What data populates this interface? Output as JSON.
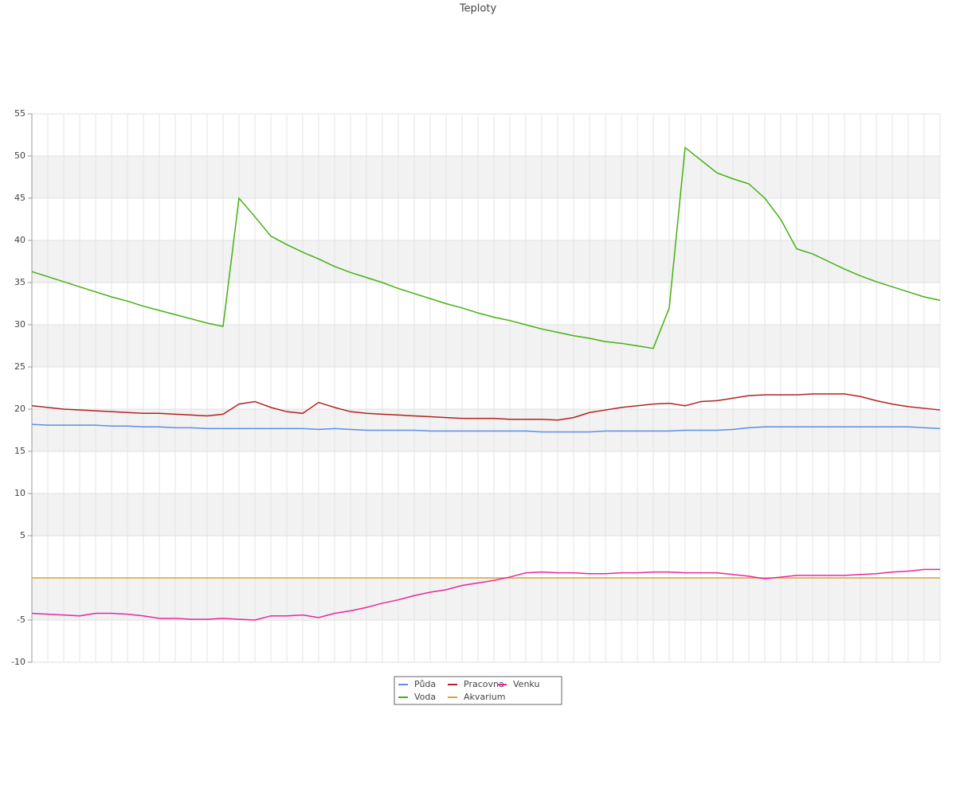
{
  "chart_data": {
    "type": "line",
    "title": "Teploty",
    "categories": [
      null,
      null,
      null,
      null,
      null,
      null,
      null,
      null,
      null,
      null,
      null,
      null,
      null,
      null,
      null,
      null,
      null,
      null,
      null,
      null,
      null,
      null,
      null,
      null,
      null,
      null,
      null,
      null,
      null,
      null,
      null,
      null,
      null,
      null,
      null,
      null,
      null,
      null,
      null,
      null,
      null,
      null,
      null,
      null,
      null,
      null,
      null,
      null,
      null,
      null,
      null,
      null,
      null,
      null,
      null,
      null,
      null,
      null
    ],
    "ylim": [
      -10,
      55
    ],
    "yticks": [
      -10,
      -5,
      5,
      10,
      15,
      20,
      25,
      30,
      35,
      40,
      45,
      50,
      55
    ],
    "grid": true,
    "bands": true,
    "legend": "bottom",
    "series": [
      {
        "name": "Půda",
        "color": "#5b8ee6",
        "values": [
          18.2,
          18.1,
          18.1,
          18.1,
          18.1,
          18.0,
          18.0,
          17.9,
          17.9,
          17.8,
          17.8,
          17.7,
          17.7,
          17.7,
          17.7,
          17.7,
          17.7,
          17.7,
          17.6,
          17.7,
          17.6,
          17.5,
          17.5,
          17.5,
          17.5,
          17.4,
          17.4,
          17.4,
          17.4,
          17.4,
          17.4,
          17.4,
          17.3,
          17.3,
          17.3,
          17.3,
          17.4,
          17.4,
          17.4,
          17.4,
          17.4,
          17.5,
          17.5,
          17.5,
          17.6,
          17.8,
          17.9,
          17.9,
          17.9,
          17.9,
          17.9,
          17.9,
          17.9,
          17.9,
          17.9,
          17.9,
          17.8,
          17.7
        ]
      },
      {
        "name": "Voda",
        "color": "#44b012",
        "values": [
          36.3,
          35.7,
          35.1,
          34.5,
          33.9,
          33.3,
          32.8,
          32.2,
          31.7,
          31.2,
          30.7,
          30.2,
          29.8,
          45,
          42.8,
          40.5,
          39.5,
          38.6,
          37.8,
          36.9,
          36.2,
          35.6,
          35.0,
          34.3,
          33.7,
          33.1,
          32.5,
          32.0,
          31.4,
          30.9,
          30.5,
          30.0,
          29.5,
          29.1,
          28.7,
          28.4,
          28.0,
          27.8,
          27.5,
          27.2,
          32,
          51,
          49.5,
          48,
          47.3,
          46.7,
          45,
          42.5,
          39,
          38.4,
          37.5,
          36.6,
          35.8,
          35.1,
          34.5,
          33.9,
          33.3,
          32.9
        ]
      },
      {
        "name": "Pracovna",
        "color": "#b22222",
        "values": [
          20.4,
          20.2,
          20.0,
          19.9,
          19.8,
          19.7,
          19.6,
          19.5,
          19.5,
          19.4,
          19.3,
          19.2,
          19.4,
          20.6,
          20.9,
          20.2,
          19.7,
          19.5,
          20.8,
          20.2,
          19.7,
          19.5,
          19.4,
          19.3,
          19.2,
          19.1,
          19.0,
          18.9,
          18.9,
          18.9,
          18.8,
          18.8,
          18.8,
          18.7,
          19.0,
          19.6,
          19.9,
          20.2,
          20.4,
          20.6,
          20.7,
          20.4,
          20.9,
          21.0,
          21.3,
          21.6,
          21.7,
          21.7,
          21.7,
          21.8,
          21.8,
          21.8,
          21.5,
          21.0,
          20.6,
          20.3,
          20.1,
          19.9
        ]
      },
      {
        "name": "Akvarium",
        "color": "#e0a030",
        "values": [
          0,
          0,
          0,
          0,
          0,
          0,
          0,
          0,
          0,
          0,
          0,
          0,
          0,
          0,
          0,
          0,
          0,
          0,
          0,
          0,
          0,
          0,
          0,
          0,
          0,
          0,
          0,
          0,
          0,
          0,
          0,
          0,
          0,
          0,
          0,
          0,
          0,
          0,
          0,
          0,
          0,
          0,
          0,
          0,
          0,
          0,
          0,
          0,
          0,
          0,
          0,
          0,
          0,
          0,
          0,
          0,
          0,
          0
        ]
      },
      {
        "name": "Venku",
        "color": "#e8279a",
        "values": [
          -4.2,
          -4.3,
          -4.4,
          -4.5,
          -4.2,
          -4.2,
          -4.3,
          -4.5,
          -4.8,
          -4.8,
          -4.9,
          -4.9,
          -4.8,
          -4.9,
          -5.0,
          -4.5,
          -4.5,
          -4.4,
          -4.7,
          -4.2,
          -3.9,
          -3.5,
          -3.0,
          -2.6,
          -2.1,
          -1.7,
          -1.4,
          -0.9,
          -0.6,
          -0.3,
          0.1,
          0.6,
          0.7,
          0.6,
          0.6,
          0.5,
          0.5,
          0.6,
          0.6,
          0.7,
          0.7,
          0.6,
          0.6,
          0.6,
          0.4,
          0.2,
          -0.1,
          0.1,
          0.3,
          0.3,
          0.3,
          0.3,
          0.4,
          0.5,
          0.7,
          0.8,
          1.0,
          1.0
        ]
      }
    ]
  }
}
